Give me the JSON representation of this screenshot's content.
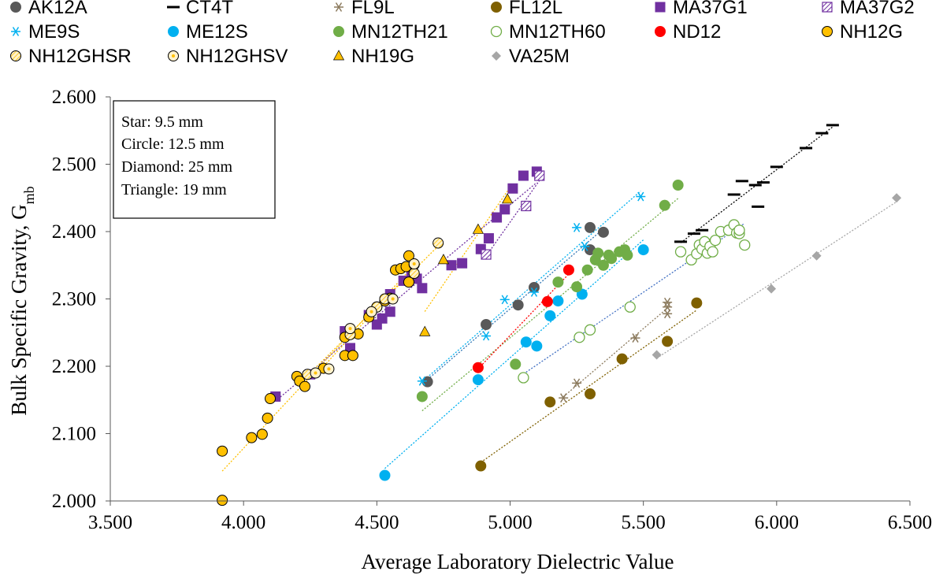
{
  "chart_data": {
    "type": "scatter",
    "xlabel": "Average Laboratory Dielectric Value",
    "ylabel_main": "Bulk Specific Gravity, G",
    "ylabel_sub": "mb",
    "xlim": [
      3.5,
      6.5
    ],
    "ylim": [
      2.0,
      2.6
    ],
    "x_ticks": [
      "3.500",
      "4.000",
      "4.500",
      "5.000",
      "5.500",
      "6.000",
      "6.500"
    ],
    "y_ticks": [
      "2.000",
      "2.100",
      "2.200",
      "2.300",
      "2.400",
      "2.500",
      "2.600"
    ],
    "grid": false,
    "legend_position": "top",
    "annotation": [
      "Star: 9.5 mm",
      "Circle: 12.5 mm",
      "Diamond: 25 mm",
      "Triangle: 19 mm"
    ],
    "series": [
      {
        "name": "AK12A",
        "marker": "circle",
        "color": "#595959",
        "trend": "#2f75b5",
        "points": [
          [
            4.69,
            2.177
          ],
          [
            4.91,
            2.262
          ],
          [
            5.03,
            2.291
          ],
          [
            5.09,
            2.317
          ],
          [
            5.3,
            2.373
          ],
          [
            5.3,
            2.406
          ],
          [
            5.35,
            2.399
          ]
        ]
      },
      {
        "name": "CT4T",
        "marker": "dash",
        "color": "#000000",
        "trend": "#000000",
        "points": [
          [
            5.64,
            2.385
          ],
          [
            5.69,
            2.397
          ],
          [
            5.72,
            2.402
          ],
          [
            5.84,
            2.455
          ],
          [
            5.87,
            2.475
          ],
          [
            5.92,
            2.469
          ],
          [
            5.95,
            2.473
          ],
          [
            5.93,
            2.437
          ],
          [
            6.0,
            2.496
          ],
          [
            6.11,
            2.524
          ],
          [
            6.17,
            2.546
          ],
          [
            6.21,
            2.558
          ]
        ]
      },
      {
        "name": "FL9L",
        "marker": "asterisk",
        "color": "#8c7b5e",
        "trend": "#8c7b5e",
        "points": [
          [
            5.2,
            2.153
          ],
          [
            5.25,
            2.175
          ],
          [
            5.47,
            2.242
          ],
          [
            5.59,
            2.278
          ],
          [
            5.59,
            2.288
          ],
          [
            5.59,
            2.295
          ]
        ]
      },
      {
        "name": "FL12L",
        "marker": "circle",
        "color": "#7f6000",
        "trend": "#7f6000",
        "points": [
          [
            4.89,
            2.052
          ],
          [
            5.15,
            2.147
          ],
          [
            5.3,
            2.159
          ],
          [
            5.42,
            2.211
          ],
          [
            5.59,
            2.237
          ],
          [
            5.7,
            2.294
          ]
        ]
      },
      {
        "name": "MA37G1",
        "marker": "square",
        "color": "#7030a0",
        "trend": "#7030a0",
        "points": [
          [
            4.12,
            2.155
          ],
          [
            4.25,
            2.188
          ],
          [
            4.38,
            2.252
          ],
          [
            4.4,
            2.227
          ],
          [
            4.47,
            2.276
          ],
          [
            4.5,
            2.262
          ],
          [
            4.52,
            2.271
          ],
          [
            4.55,
            2.281
          ],
          [
            4.55,
            2.307
          ],
          [
            4.6,
            2.327
          ],
          [
            4.63,
            2.338
          ],
          [
            4.65,
            2.33
          ],
          [
            4.67,
            2.316
          ],
          [
            4.78,
            2.35
          ],
          [
            4.82,
            2.353
          ],
          [
            4.89,
            2.374
          ],
          [
            4.92,
            2.39
          ],
          [
            4.95,
            2.421
          ],
          [
            4.98,
            2.433
          ],
          [
            5.01,
            2.464
          ],
          [
            5.05,
            2.483
          ],
          [
            5.1,
            2.489
          ]
        ]
      },
      {
        "name": "MA37G2",
        "marker": "square-hatch",
        "color": "#7030a0",
        "trend": "#7030a0",
        "points": [
          [
            4.91,
            2.366
          ],
          [
            5.06,
            2.438
          ],
          [
            5.11,
            2.483
          ]
        ]
      },
      {
        "name": "ME9S",
        "marker": "asterisk",
        "color": "#00b0f0",
        "trend": "#00b0f0",
        "points": [
          [
            4.67,
            2.178
          ],
          [
            4.91,
            2.245
          ],
          [
            4.98,
            2.299
          ],
          [
            5.09,
            2.31
          ],
          [
            5.25,
            2.406
          ],
          [
            5.28,
            2.378
          ],
          [
            5.49,
            2.452
          ]
        ]
      },
      {
        "name": "ME12S",
        "marker": "circle",
        "color": "#00b0f0",
        "trend": "#00b0f0",
        "points": [
          [
            4.53,
            2.038
          ],
          [
            4.88,
            2.18
          ],
          [
            5.06,
            2.236
          ],
          [
            5.1,
            2.23
          ],
          [
            5.15,
            2.275
          ],
          [
            5.18,
            2.297
          ],
          [
            5.27,
            2.307
          ],
          [
            5.5,
            2.373
          ]
        ]
      },
      {
        "name": "MN12TH21",
        "marker": "circle",
        "color": "#70ad47",
        "trend": "#70ad47",
        "points": [
          [
            4.67,
            2.155
          ],
          [
            5.02,
            2.203
          ],
          [
            5.18,
            2.325
          ],
          [
            5.25,
            2.318
          ],
          [
            5.29,
            2.343
          ],
          [
            5.32,
            2.358
          ],
          [
            5.33,
            2.368
          ],
          [
            5.35,
            2.35
          ],
          [
            5.37,
            2.365
          ],
          [
            5.38,
            2.36
          ],
          [
            5.41,
            2.37
          ],
          [
            5.43,
            2.373
          ],
          [
            5.44,
            2.365
          ],
          [
            5.58,
            2.439
          ],
          [
            5.63,
            2.469
          ]
        ]
      },
      {
        "name": "MN12TH60",
        "marker": "circle-open",
        "color": "#70ad47",
        "trend": "#4472c4",
        "points": [
          [
            5.05,
            2.183
          ],
          [
            5.26,
            2.243
          ],
          [
            5.3,
            2.254
          ],
          [
            5.45,
            2.288
          ],
          [
            5.64,
            2.37
          ],
          [
            5.68,
            2.358
          ],
          [
            5.7,
            2.367
          ],
          [
            5.71,
            2.38
          ],
          [
            5.72,
            2.374
          ],
          [
            5.73,
            2.385
          ],
          [
            5.74,
            2.368
          ],
          [
            5.75,
            2.378
          ],
          [
            5.76,
            2.37
          ],
          [
            5.77,
            2.387
          ],
          [
            5.79,
            2.4
          ],
          [
            5.82,
            2.402
          ],
          [
            5.84,
            2.41
          ],
          [
            5.85,
            2.398
          ],
          [
            5.86,
            2.397
          ],
          [
            5.86,
            2.402
          ],
          [
            5.88,
            2.38
          ]
        ]
      },
      {
        "name": "ND12",
        "marker": "circle",
        "color": "#ff0000",
        "trend": "#ff0000",
        "points": [
          [
            4.88,
            2.198
          ],
          [
            5.14,
            2.296
          ],
          [
            5.22,
            2.343
          ]
        ]
      },
      {
        "name": "NH12G",
        "marker": "circle",
        "color": "#ffc000",
        "trend": "#ffc000",
        "points": [
          [
            3.92,
            2.001
          ],
          [
            3.92,
            2.074
          ],
          [
            4.03,
            2.094
          ],
          [
            4.07,
            2.099
          ],
          [
            4.09,
            2.123
          ],
          [
            4.1,
            2.152
          ],
          [
            4.2,
            2.185
          ],
          [
            4.21,
            2.178
          ],
          [
            4.23,
            2.17
          ],
          [
            4.3,
            2.197
          ],
          [
            4.38,
            2.216
          ],
          [
            4.38,
            2.243
          ],
          [
            4.41,
            2.216
          ],
          [
            4.43,
            2.248
          ],
          [
            4.47,
            2.273
          ],
          [
            4.5,
            2.288
          ],
          [
            4.53,
            2.297
          ],
          [
            4.55,
            2.301
          ],
          [
            4.57,
            2.343
          ],
          [
            4.59,
            2.345
          ],
          [
            4.61,
            2.348
          ],
          [
            4.62,
            2.364
          ],
          [
            4.62,
            2.325
          ],
          [
            4.64,
            2.351
          ]
        ]
      },
      {
        "name": "NH12GHSR",
        "marker": "circle-hatch",
        "color": "#ffc000",
        "trend": "#ffc000",
        "points": [
          [
            4.24,
            2.188
          ],
          [
            4.4,
            2.247
          ],
          [
            4.5,
            2.288
          ],
          [
            4.53,
            2.3
          ],
          [
            4.64,
            2.338
          ],
          [
            4.73,
            2.383
          ]
        ]
      },
      {
        "name": "NH12GHSV",
        "marker": "circle-dot",
        "color": "#ffc000",
        "trend": "#ffc000",
        "points": [
          [
            4.27,
            2.19
          ],
          [
            4.32,
            2.196
          ],
          [
            4.4,
            2.256
          ],
          [
            4.48,
            2.281
          ],
          [
            4.56,
            2.3
          ],
          [
            4.64,
            2.352
          ]
        ]
      },
      {
        "name": "NH19G",
        "marker": "triangle",
        "color": "#ffc000",
        "trend": "#ffc000",
        "points": [
          [
            4.68,
            2.251
          ],
          [
            4.75,
            2.358
          ],
          [
            4.88,
            2.403
          ],
          [
            4.99,
            2.448
          ]
        ]
      },
      {
        "name": "VA25M",
        "marker": "diamond",
        "color": "#a6a6a6",
        "trend": "#a6a6a6",
        "points": [
          [
            5.55,
            2.217
          ],
          [
            5.98,
            2.315
          ],
          [
            6.15,
            2.364
          ],
          [
            6.45,
            2.45
          ]
        ]
      }
    ]
  }
}
